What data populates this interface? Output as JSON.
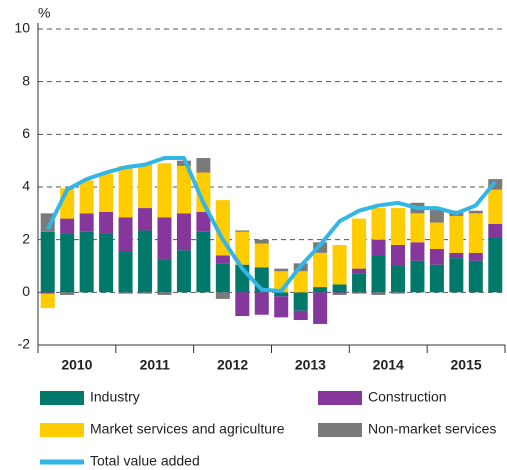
{
  "chart_data": {
    "type": "stacked_bar_line",
    "y_unit_label": "%",
    "years": [
      "2010",
      "2011",
      "2012",
      "2013",
      "2014",
      "2015"
    ],
    "quarters_per_year": 4,
    "ylim": [
      -2,
      10
    ],
    "yticks": [
      -2,
      0,
      2,
      4,
      6,
      8,
      10
    ],
    "grid": true,
    "series": [
      {
        "name": "Industry",
        "color": "#00796b",
        "values": [
          2.3,
          2.25,
          2.3,
          2.25,
          1.55,
          2.35,
          1.25,
          1.6,
          2.3,
          1.1,
          1.05,
          0.95,
          -0.15,
          -0.7,
          0.2,
          0.3,
          0.7,
          1.4,
          1.0,
          1.2,
          1.05,
          1.3,
          1.2,
          2.1
        ]
      },
      {
        "name": "Construction",
        "color": "#85379b",
        "values": [
          -0.05,
          0.55,
          0.7,
          0.8,
          1.3,
          0.85,
          1.6,
          1.4,
          0.75,
          0.3,
          -0.9,
          -0.85,
          -0.8,
          -0.35,
          -1.2,
          -0.05,
          0.2,
          0.6,
          0.8,
          0.7,
          0.6,
          0.2,
          0.3,
          0.5
        ]
      },
      {
        "name": "Market services and agriculture",
        "color": "#ffcc00",
        "values": [
          -0.55,
          1.15,
          1.25,
          1.45,
          1.95,
          1.65,
          2.05,
          1.8,
          1.5,
          2.1,
          1.25,
          0.9,
          0.8,
          0.8,
          1.3,
          1.5,
          1.9,
          1.2,
          1.4,
          1.1,
          1.0,
          1.4,
          1.5,
          1.3
        ]
      },
      {
        "name": "Non-market services",
        "color": "#7a7a7a",
        "values": [
          0.7,
          -0.1,
          0,
          0,
          -0.05,
          -0.05,
          -0.1,
          0.2,
          0.55,
          -0.25,
          0.05,
          0.15,
          0.1,
          0.3,
          0.4,
          -0.05,
          -0.05,
          -0.1,
          -0.05,
          0.4,
          0.5,
          0.2,
          0.1,
          0.4
        ]
      },
      {
        "name": "Total value added",
        "color": "#33b5e5",
        "type": "line",
        "values": [
          2.4,
          3.9,
          4.3,
          4.55,
          4.75,
          4.85,
          5.1,
          5.1,
          3.4,
          2.0,
          0.9,
          0.1,
          0.05,
          1.0,
          1.8,
          2.7,
          3.1,
          3.3,
          3.4,
          3.2,
          3.2,
          3.0,
          3.3,
          4.2
        ]
      }
    ]
  }
}
